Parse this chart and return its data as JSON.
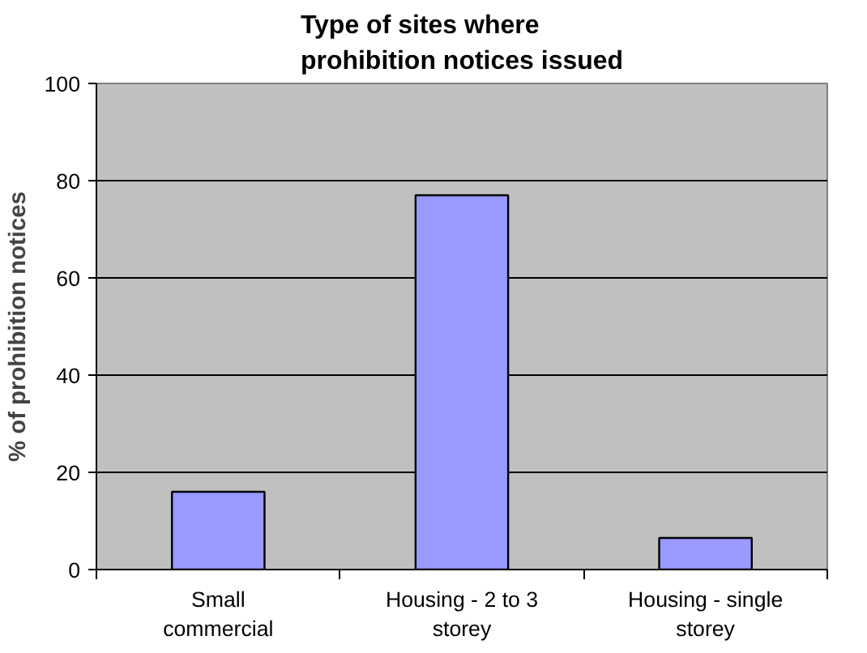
{
  "chart_data": {
    "type": "bar",
    "title": "Type of sites where prohibition notices issued",
    "ylabel": "% of prohibition notices",
    "categories": [
      "Small commercial",
      "Housing - 2 to 3 storey",
      "Housing - single storey"
    ],
    "values": [
      16,
      77,
      6.5
    ],
    "color": "#9999ff",
    "ylim": [
      0,
      100
    ],
    "yticks": [
      0,
      20,
      40,
      60,
      80,
      100
    ],
    "grid": "y"
  }
}
